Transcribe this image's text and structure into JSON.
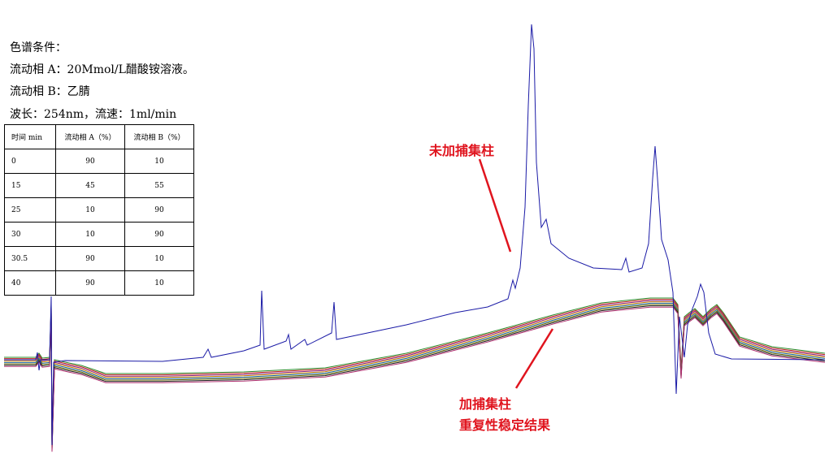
{
  "conditions": {
    "title": "色谱条件：",
    "lines": [
      "流动相 A：20Mmol/L醋酸铵溶液。",
      "流动相 B：乙腈",
      "波长：254nm，流速：1ml/min"
    ]
  },
  "table": {
    "header": [
      "时间 min",
      "流动相 A（%）",
      "流动相 B（%）"
    ],
    "rows": [
      [
        0,
        90,
        10
      ],
      [
        15,
        45,
        55
      ],
      [
        25,
        10,
        90
      ],
      [
        30,
        10,
        90
      ],
      [
        30.5,
        90,
        10
      ],
      [
        40,
        90,
        10
      ]
    ]
  },
  "annotations": {
    "without_trap": "未加捕集柱",
    "with_trap": [
      "加捕集柱",
      "重复性稳定结果"
    ]
  }
}
